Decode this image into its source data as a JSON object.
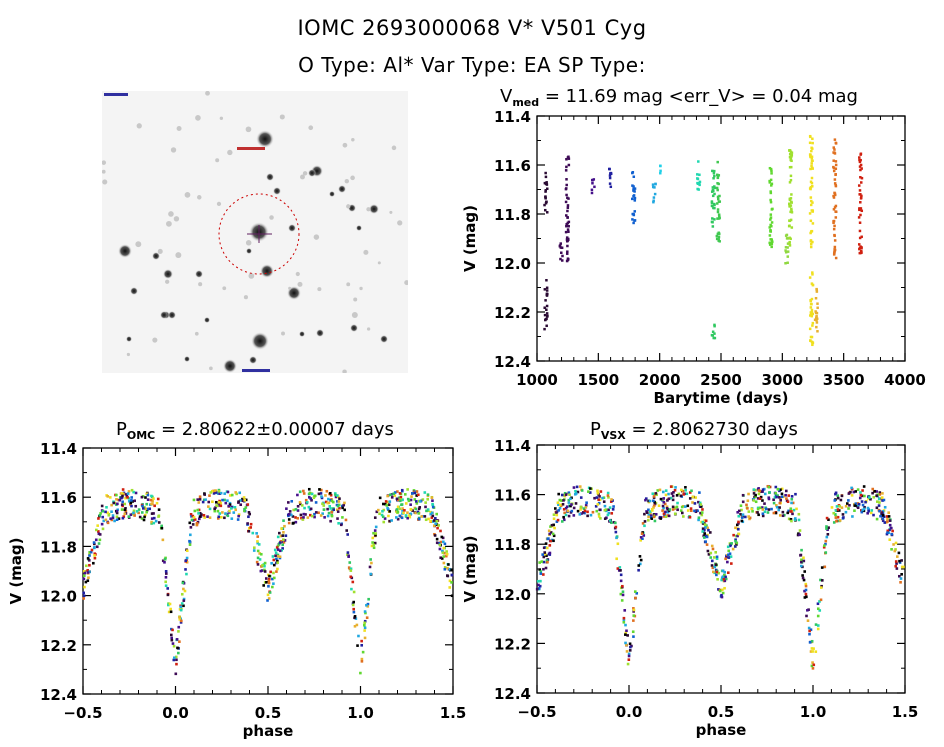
{
  "header": {
    "line1": "IOMC 2693000068    V* V501 Cyg",
    "line2": "O Type: Al*  Var Type: EA  SP Type:"
  },
  "thumbnail": {
    "description": "sky-field-image",
    "target_marker_color": "#cc0000"
  },
  "chart_data": [
    {
      "type": "scatter",
      "title_main": "V",
      "title_sub": "med",
      "title_rest": " = 11.69 mag <err_V> = 0.04 mag",
      "xlabel": "Barytime (days)",
      "ylabel": "V (mag)",
      "xlim": [
        1000,
        4000
      ],
      "ylim": [
        12.4,
        11.4
      ],
      "y_inverted": true,
      "xticks": [
        1000,
        1500,
        2000,
        2500,
        3000,
        3500,
        4000
      ],
      "xtick_labels": [
        "1000",
        "1500",
        "2000",
        "2500",
        "3000",
        "3500",
        "4000"
      ],
      "yticks": [
        11.4,
        11.6,
        11.8,
        12.0,
        12.2,
        12.4
      ],
      "ytick_labels": [
        "11.4",
        "11.6",
        "11.8",
        "12.0",
        "12.2",
        "12.4"
      ],
      "grid": false,
      "series": [
        {
          "name": "seg1",
          "x": 1075,
          "ymin": 11.62,
          "ymax": 11.8,
          "color": "#2a0a33"
        },
        {
          "name": "seg1b",
          "x": 1075,
          "ymin": 12.06,
          "ymax": 12.27,
          "color": "#2a0a33"
        },
        {
          "name": "seg2",
          "x": 1200,
          "ymin": 11.91,
          "ymax": 12.0,
          "color": "#3d0a55"
        },
        {
          "name": "seg3",
          "x": 1250,
          "ymin": 11.55,
          "ymax": 11.99,
          "color": "#3d0a55"
        },
        {
          "name": "seg4",
          "x": 1460,
          "ymin": 11.65,
          "ymax": 11.72,
          "color": "#45108a"
        },
        {
          "name": "seg5",
          "x": 1600,
          "ymin": 11.61,
          "ymax": 11.7,
          "color": "#2020a0"
        },
        {
          "name": "seg6",
          "x": 1790,
          "ymin": 11.61,
          "ymax": 11.84,
          "color": "#1060d0"
        },
        {
          "name": "seg7",
          "x": 1960,
          "ymin": 11.66,
          "ymax": 11.75,
          "color": "#20a8e0"
        },
        {
          "name": "seg8",
          "x": 2010,
          "ymin": 11.59,
          "ymax": 11.63,
          "color": "#20d0e8"
        },
        {
          "name": "seg9",
          "x": 2320,
          "ymin": 11.58,
          "ymax": 11.7,
          "color": "#20d8b0"
        },
        {
          "name": "seg10",
          "x": 2440,
          "ymin": 11.6,
          "ymax": 11.87,
          "color": "#30c860"
        },
        {
          "name": "seg10b",
          "x": 2440,
          "ymin": 12.23,
          "ymax": 12.31,
          "color": "#30c860"
        },
        {
          "name": "seg11",
          "x": 2480,
          "ymin": 11.58,
          "ymax": 11.91,
          "color": "#40c850"
        },
        {
          "name": "seg12",
          "x": 2910,
          "ymin": 11.58,
          "ymax": 11.94,
          "color": "#60d830"
        },
        {
          "name": "seg13",
          "x": 3040,
          "ymin": 11.88,
          "ymax": 12.01,
          "color": "#90d840"
        },
        {
          "name": "seg14",
          "x": 3070,
          "ymin": 11.53,
          "ymax": 11.96,
          "color": "#a0e030"
        },
        {
          "name": "seg15",
          "x": 3240,
          "ymin": 11.47,
          "ymax": 11.94,
          "color": "#f0e020"
        },
        {
          "name": "seg15b",
          "x": 3240,
          "ymin": 12.02,
          "ymax": 12.33,
          "color": "#f0e020"
        },
        {
          "name": "seg16",
          "x": 3280,
          "ymin": 12.1,
          "ymax": 12.29,
          "color": "#e8b030"
        },
        {
          "name": "seg17",
          "x": 3430,
          "ymin": 11.49,
          "ymax": 11.99,
          "color": "#e07020"
        },
        {
          "name": "seg18",
          "x": 3640,
          "ymin": 11.54,
          "ymax": 11.97,
          "color": "#d02010"
        }
      ]
    },
    {
      "type": "scatter",
      "title_main": "P",
      "title_sub": "OMC",
      "title_rest": " = 2.80622±0.00007 days",
      "xlabel": "phase",
      "ylabel": "V (mag)",
      "xlim": [
        -0.5,
        1.5
      ],
      "ylim": [
        12.4,
        11.4
      ],
      "y_inverted": true,
      "xticks": [
        -0.5,
        0.0,
        0.5,
        1.0,
        1.5
      ],
      "xtick_labels": [
        "−0.5",
        "0.0",
        "0.5",
        "1.0",
        "1.5"
      ],
      "yticks": [
        11.4,
        11.6,
        11.8,
        12.0,
        12.2,
        12.4
      ],
      "ytick_labels": [
        "11.4",
        "11.6",
        "11.8",
        "12.0",
        "12.2",
        "12.4"
      ],
      "grid": false,
      "light_curve": {
        "max_mag": 11.65,
        "primary_min_phase": 0.0,
        "primary_min_mag": 12.28,
        "secondary_min_phase": 0.5,
        "secondary_min_mag": 11.97,
        "eclipse_half_width": 0.09,
        "repeat_cycles": 2
      }
    },
    {
      "type": "scatter",
      "title_main": "P",
      "title_sub": "VSX",
      "title_rest": " = 2.8062730 days",
      "xlabel": "phase",
      "ylabel": "V (mag)",
      "xlim": [
        -0.5,
        1.5
      ],
      "ylim": [
        12.4,
        11.4
      ],
      "y_inverted": true,
      "xticks": [
        -0.5,
        0.0,
        0.5,
        1.0,
        1.5
      ],
      "xtick_labels": [
        "−0.5",
        "0.0",
        "0.5",
        "1.0",
        "1.5"
      ],
      "yticks": [
        11.4,
        11.6,
        11.8,
        12.0,
        12.2,
        12.4
      ],
      "ytick_labels": [
        "11.4",
        "11.6",
        "11.8",
        "12.0",
        "12.2",
        "12.4"
      ],
      "grid": false,
      "light_curve": {
        "max_mag": 11.65,
        "primary_min_phase": 0.0,
        "primary_min_mag": 12.28,
        "secondary_min_phase": 0.5,
        "secondary_min_mag": 11.97,
        "eclipse_half_width": 0.09,
        "repeat_cycles": 2
      }
    }
  ],
  "palette": [
    "#2a0a33",
    "#3d0a55",
    "#45108a",
    "#2020a0",
    "#1060d0",
    "#20a8e0",
    "#20d8b0",
    "#30c860",
    "#60d830",
    "#a0e030",
    "#f0e020",
    "#e8b030",
    "#e07020",
    "#d02010",
    "#000000"
  ]
}
